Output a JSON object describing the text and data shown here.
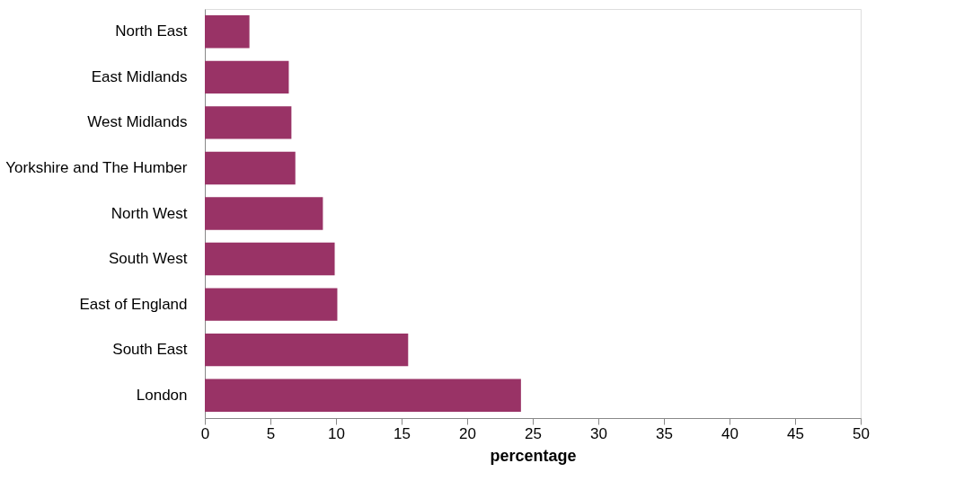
{
  "chart_data": {
    "type": "bar",
    "orientation": "horizontal",
    "xlabel": "percentage",
    "categories": [
      "North East",
      "East Midlands",
      "West Midlands",
      "Yorkshire and The Humber",
      "North West",
      "South West",
      "East of England",
      "South East",
      "London"
    ],
    "values": [
      3.4,
      6.4,
      6.6,
      6.9,
      9.0,
      9.9,
      10.1,
      15.5,
      24.1
    ],
    "color": "#993366",
    "xlim": [
      0,
      50
    ],
    "xticks": [
      0,
      5,
      10,
      15,
      20,
      25,
      30,
      35,
      40,
      45,
      50
    ],
    "grid": false
  }
}
